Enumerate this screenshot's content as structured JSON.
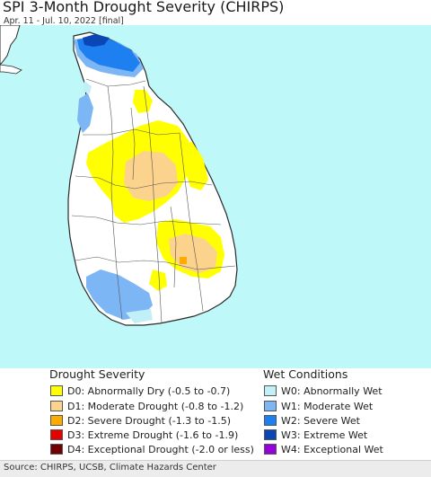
{
  "header": {
    "title": "SPI 3-Month Drought Severity (CHIRPS)",
    "subtitle": "Apr. 11 - Jul. 10, 2022 [final]"
  },
  "colors": {
    "sea": "#bff8f8",
    "land": "#ffffff",
    "border": "#2a2a2a"
  },
  "legend": {
    "drought_title": "Drought Severity",
    "wet_title": "Wet Conditions",
    "drought_items": [
      {
        "label": "D0: Abnormally Dry (-0.5 to -0.7)",
        "color": "#ffff00"
      },
      {
        "label": "D1: Moderate Drought (-0.8 to -1.2)",
        "color": "#fcd38c"
      },
      {
        "label": "D2: Severe Drought (-1.3 to -1.5)",
        "color": "#ffaa00"
      },
      {
        "label": "D3: Extreme Drought (-1.6 to -1.9)",
        "color": "#e60000"
      },
      {
        "label": "D4: Exceptional Drought (-2.0 or less)",
        "color": "#730000"
      }
    ],
    "wet_items": [
      {
        "label": "W0: Abnormally Wet",
        "color": "#c1f0f8"
      },
      {
        "label": "W1: Moderate Wet",
        "color": "#7db6f5"
      },
      {
        "label": "W2: Severe Wet",
        "color": "#1e7ff0"
      },
      {
        "label": "W3: Extreme Wet",
        "color": "#0a46b4"
      },
      {
        "label": "W4: Exceptional Wet",
        "color": "#9600dc"
      }
    ]
  },
  "footer": {
    "source": "Source: CHIRPS, UCSB, Climate Hazards Center"
  }
}
